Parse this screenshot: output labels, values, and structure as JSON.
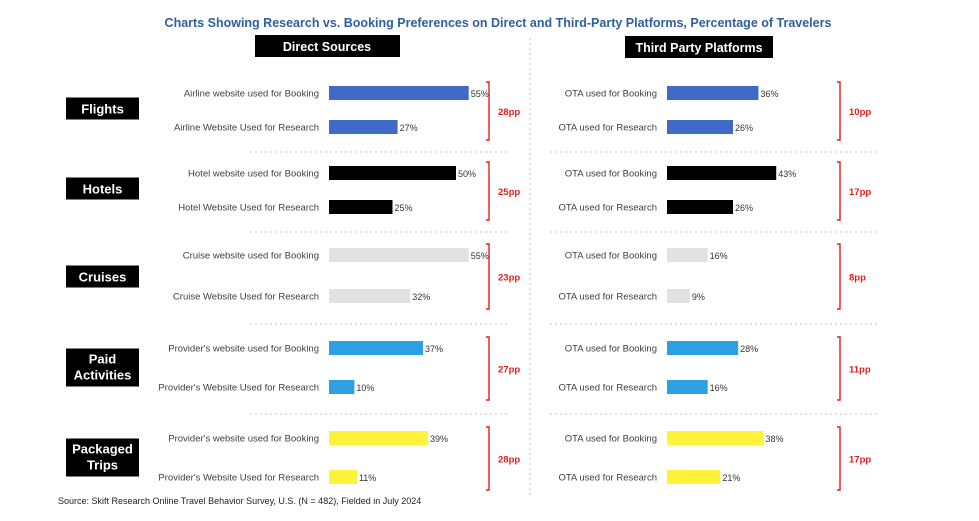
{
  "chart_data": {
    "type": "bar",
    "orientation": "horizontal",
    "title": "Charts Showing Research vs. Booking Preferences on Direct and Third-Party Platforms, Percentage of Travelers",
    "panels": [
      "Direct Sources",
      "Third Party Platforms"
    ],
    "value_suffix": "%",
    "diff_suffix": "pp",
    "source": "Source: Skift Research Online Travel Behavior Survey, U.S. (N = 482), Fielded in July 2024",
    "groups": [
      {
        "category": "Flights",
        "color": "#4169c8",
        "direct": {
          "rows": [
            {
              "label": "Airline website used for Booking",
              "value": 55
            },
            {
              "label": "Airline Website Used for Research",
              "value": 27
            }
          ],
          "diff": 28
        },
        "third_party": {
          "rows": [
            {
              "label": "OTA used for Booking",
              "value": 36
            },
            {
              "label": "OTA used for Research",
              "value": 26
            }
          ],
          "diff": 10
        }
      },
      {
        "category": "Hotels",
        "color": "#000000",
        "direct": {
          "rows": [
            {
              "label": "Hotel website used for Booking",
              "value": 50
            },
            {
              "label": "Hotel Website Used for Research",
              "value": 25
            }
          ],
          "diff": 25
        },
        "third_party": {
          "rows": [
            {
              "label": "OTA used for Booking",
              "value": 43
            },
            {
              "label": "OTA used for Research",
              "value": 26
            }
          ],
          "diff": 17
        }
      },
      {
        "category": "Cruises",
        "color": "#e2e2e2",
        "direct": {
          "rows": [
            {
              "label": "Cruise website used for Booking",
              "value": 55
            },
            {
              "label": "Cruise Website Used for Research",
              "value": 32
            }
          ],
          "diff": 23
        },
        "third_party": {
          "rows": [
            {
              "label": "OTA used for Booking",
              "value": 16
            },
            {
              "label": "OTA used for Research",
              "value": 9
            }
          ],
          "diff": 8
        }
      },
      {
        "category": "Paid Activities",
        "category_lines": [
          "Paid",
          "Activities"
        ],
        "color": "#2d9fe3",
        "direct": {
          "rows": [
            {
              "label": "Provider's website used for Booking",
              "value": 37
            },
            {
              "label": "Provider's Website Used for Research",
              "value": 10
            }
          ],
          "diff": 27
        },
        "third_party": {
          "rows": [
            {
              "label": "OTA used for Booking",
              "value": 28
            },
            {
              "label": "OTA used for Research",
              "value": 16
            }
          ],
          "diff": 11
        }
      },
      {
        "category": "Packaged Trips",
        "category_lines": [
          "Packaged",
          "Trips"
        ],
        "color": "#fff23a",
        "direct": {
          "rows": [
            {
              "label": "Provider's website used for Booking",
              "value": 39
            },
            {
              "label": "Provider's Website Used for Research",
              "value": 11
            }
          ],
          "diff": 28
        },
        "third_party": {
          "rows": [
            {
              "label": "OTA used for Booking",
              "value": 38
            },
            {
              "label": "OTA used for Research",
              "value": 21
            }
          ],
          "diff": 17
        }
      }
    ]
  }
}
